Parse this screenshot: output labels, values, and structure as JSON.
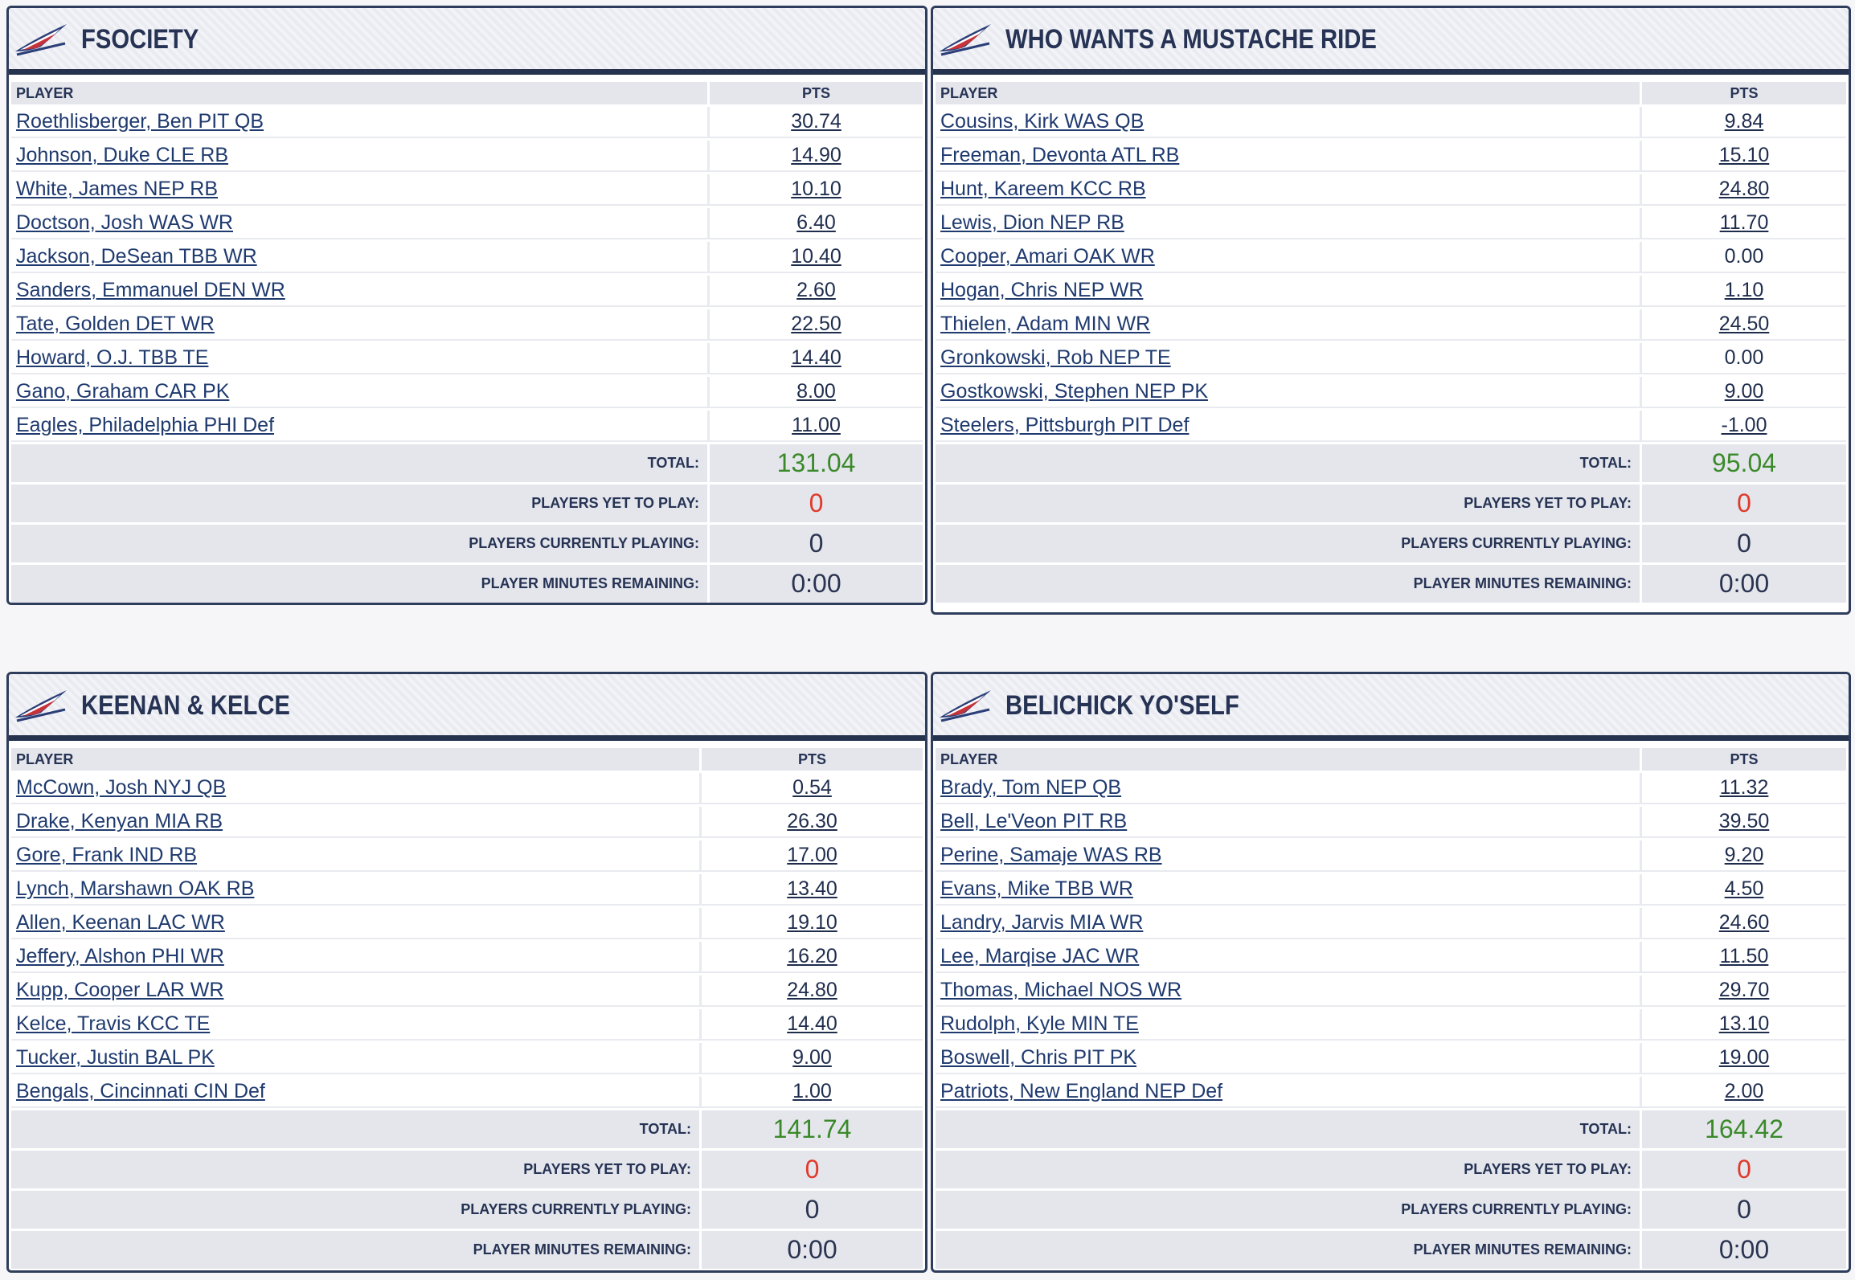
{
  "teams": [
    {
      "name": "FSOCIETY",
      "header_player": "PLAYER",
      "header_pts": "PTS",
      "players": [
        {
          "name": "Roethlisberger, Ben PIT QB",
          "pts": "30.74"
        },
        {
          "name": "Johnson, Duke CLE RB",
          "pts": "14.90"
        },
        {
          "name": "White, James NEP RB",
          "pts": "10.10"
        },
        {
          "name": "Doctson, Josh WAS WR",
          "pts": "6.40"
        },
        {
          "name": "Jackson, DeSean TBB WR",
          "pts": "10.40"
        },
        {
          "name": "Sanders, Emmanuel DEN WR",
          "pts": "2.60"
        },
        {
          "name": "Tate, Golden DET WR",
          "pts": "22.50"
        },
        {
          "name": "Howard, O.J. TBB TE",
          "pts": "14.40"
        },
        {
          "name": "Gano, Graham CAR PK",
          "pts": "8.00"
        },
        {
          "name": "Eagles, Philadelphia PHI Def",
          "pts": "11.00"
        }
      ],
      "total_label": "TOTAL:",
      "total": "131.04",
      "yet_label": "PLAYERS YET TO PLAY:",
      "yet": "0",
      "current_label": "PLAYERS CURRENTLY PLAYING:",
      "current": "0",
      "minutes_label": "PLAYER MINUTES REMAINING:",
      "minutes": "0:00"
    },
    {
      "name": "WHO WANTS A MUSTACHE RIDE",
      "header_player": "PLAYER",
      "header_pts": "PTS",
      "players": [
        {
          "name": "Cousins, Kirk WAS QB",
          "pts": "9.84"
        },
        {
          "name": "Freeman, Devonta ATL RB",
          "pts": "15.10"
        },
        {
          "name": "Hunt, Kareem KCC RB",
          "pts": "24.80"
        },
        {
          "name": "Lewis, Dion NEP RB",
          "pts": "11.70"
        },
        {
          "name": "Cooper, Amari OAK WR",
          "pts": "0.00",
          "nolink": true
        },
        {
          "name": "Hogan, Chris NEP WR",
          "pts": "1.10"
        },
        {
          "name": "Thielen, Adam MIN WR",
          "pts": "24.50"
        },
        {
          "name": "Gronkowski, Rob NEP TE",
          "pts": "0.00",
          "nolink": true
        },
        {
          "name": "Gostkowski, Stephen NEP PK",
          "pts": "9.00"
        },
        {
          "name": "Steelers, Pittsburgh PIT Def",
          "pts": "-1.00"
        }
      ],
      "total_label": "TOTAL:",
      "total": "95.04",
      "yet_label": "PLAYERS YET TO PLAY:",
      "yet": "0",
      "current_label": "PLAYERS CURRENTLY PLAYING:",
      "current": "0",
      "minutes_label": "PLAYER MINUTES REMAINING:",
      "minutes": "0:00"
    },
    {
      "name": "KEENAN & KELCE",
      "header_player": "PLAYER",
      "header_pts": "PTS",
      "players": [
        {
          "name": "McCown, Josh NYJ QB",
          "pts": "0.54"
        },
        {
          "name": "Drake, Kenyan MIA RB",
          "pts": "26.30"
        },
        {
          "name": "Gore, Frank IND RB",
          "pts": "17.00"
        },
        {
          "name": "Lynch, Marshawn OAK RB",
          "pts": "13.40"
        },
        {
          "name": "Allen, Keenan LAC WR",
          "pts": "19.10"
        },
        {
          "name": "Jeffery, Alshon PHI WR",
          "pts": "16.20"
        },
        {
          "name": "Kupp, Cooper LAR WR",
          "pts": "24.80"
        },
        {
          "name": "Kelce, Travis KCC TE",
          "pts": "14.40"
        },
        {
          "name": "Tucker, Justin BAL PK",
          "pts": "9.00"
        },
        {
          "name": "Bengals, Cincinnati CIN Def",
          "pts": "1.00"
        }
      ],
      "total_label": "TOTAL:",
      "total": "141.74",
      "yet_label": "PLAYERS YET TO PLAY:",
      "yet": "0",
      "current_label": "PLAYERS CURRENTLY PLAYING:",
      "current": "0",
      "minutes_label": "PLAYER MINUTES REMAINING:",
      "minutes": "0:00"
    },
    {
      "name": "BELICHICK YO'SELF",
      "header_player": "PLAYER",
      "header_pts": "PTS",
      "players": [
        {
          "name": "Brady, Tom NEP QB",
          "pts": "11.32"
        },
        {
          "name": "Bell, Le'Veon PIT RB",
          "pts": "39.50"
        },
        {
          "name": "Perine, Samaje WAS RB",
          "pts": "9.20"
        },
        {
          "name": "Evans, Mike TBB WR",
          "pts": "4.50"
        },
        {
          "name": "Landry, Jarvis MIA WR",
          "pts": "24.60"
        },
        {
          "name": "Lee, Marqise JAC WR",
          "pts": "11.50"
        },
        {
          "name": "Thomas, Michael NOS WR",
          "pts": "29.70"
        },
        {
          "name": "Rudolph, Kyle MIN TE",
          "pts": "13.10"
        },
        {
          "name": "Boswell, Chris PIT PK",
          "pts": "19.00"
        },
        {
          "name": "Patriots, New England NEP Def",
          "pts": "2.00"
        }
      ],
      "total_label": "TOTAL:",
      "total": "164.42",
      "yet_label": "PLAYERS YET TO PLAY:",
      "yet": "0",
      "current_label": "PLAYERS CURRENTLY PLAYING:",
      "current": "0",
      "minutes_label": "PLAYER MINUTES REMAINING:",
      "minutes": "0:00"
    }
  ],
  "colors": {
    "navy": "#26334f",
    "total_green": "#3b8a2a",
    "yet_red": "#e03a2a"
  },
  "icons": {
    "team_logo": "jet-wing-logo-icon"
  }
}
